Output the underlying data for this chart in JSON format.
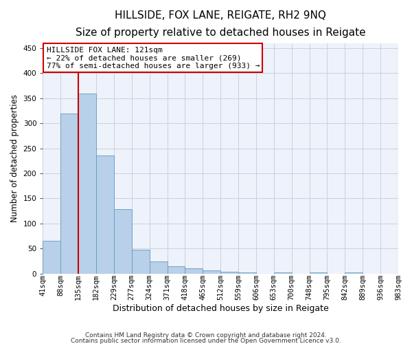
{
  "title": "HILLSIDE, FOX LANE, REIGATE, RH2 9NQ",
  "subtitle": "Size of property relative to detached houses in Reigate",
  "xlabel": "Distribution of detached houses by size in Reigate",
  "ylabel": "Number of detached properties",
  "footnote1": "Contains HM Land Registry data © Crown copyright and database right 2024.",
  "footnote2": "Contains public sector information licensed under the Open Government Licence v3.0.",
  "bar_values": [
    65,
    320,
    360,
    236,
    128,
    48,
    24,
    15,
    10,
    6,
    3,
    2,
    0,
    2,
    0,
    2,
    0,
    2,
    0,
    0
  ],
  "bar_labels": [
    "41sqm",
    "88sqm",
    "135sqm",
    "182sqm",
    "229sqm",
    "277sqm",
    "324sqm",
    "371sqm",
    "418sqm",
    "465sqm",
    "512sqm",
    "559sqm",
    "606sqm",
    "653sqm",
    "700sqm",
    "748sqm",
    "795sqm",
    "842sqm",
    "889sqm",
    "936sqm",
    "983sqm"
  ],
  "bar_color": "#b8d0ea",
  "bar_edge_color": "#6699bb",
  "property_line_x": 1.5,
  "annotation_text": "HILLSIDE FOX LANE: 121sqm\n← 22% of detached houses are smaller (269)\n77% of semi-detached houses are larger (933) →",
  "annotation_box_color": "#ffffff",
  "annotation_border_color": "#cc0000",
  "ylim": [
    0,
    460
  ],
  "yticks": [
    0,
    50,
    100,
    150,
    200,
    250,
    300,
    350,
    400,
    450
  ],
  "background_color": "#eef2fa",
  "grid_color": "#c8cfe0",
  "title_fontsize": 11,
  "subtitle_fontsize": 9.5,
  "xlabel_fontsize": 9,
  "ylabel_fontsize": 8.5,
  "tick_fontsize": 7.5,
  "footnote_fontsize": 6.5
}
